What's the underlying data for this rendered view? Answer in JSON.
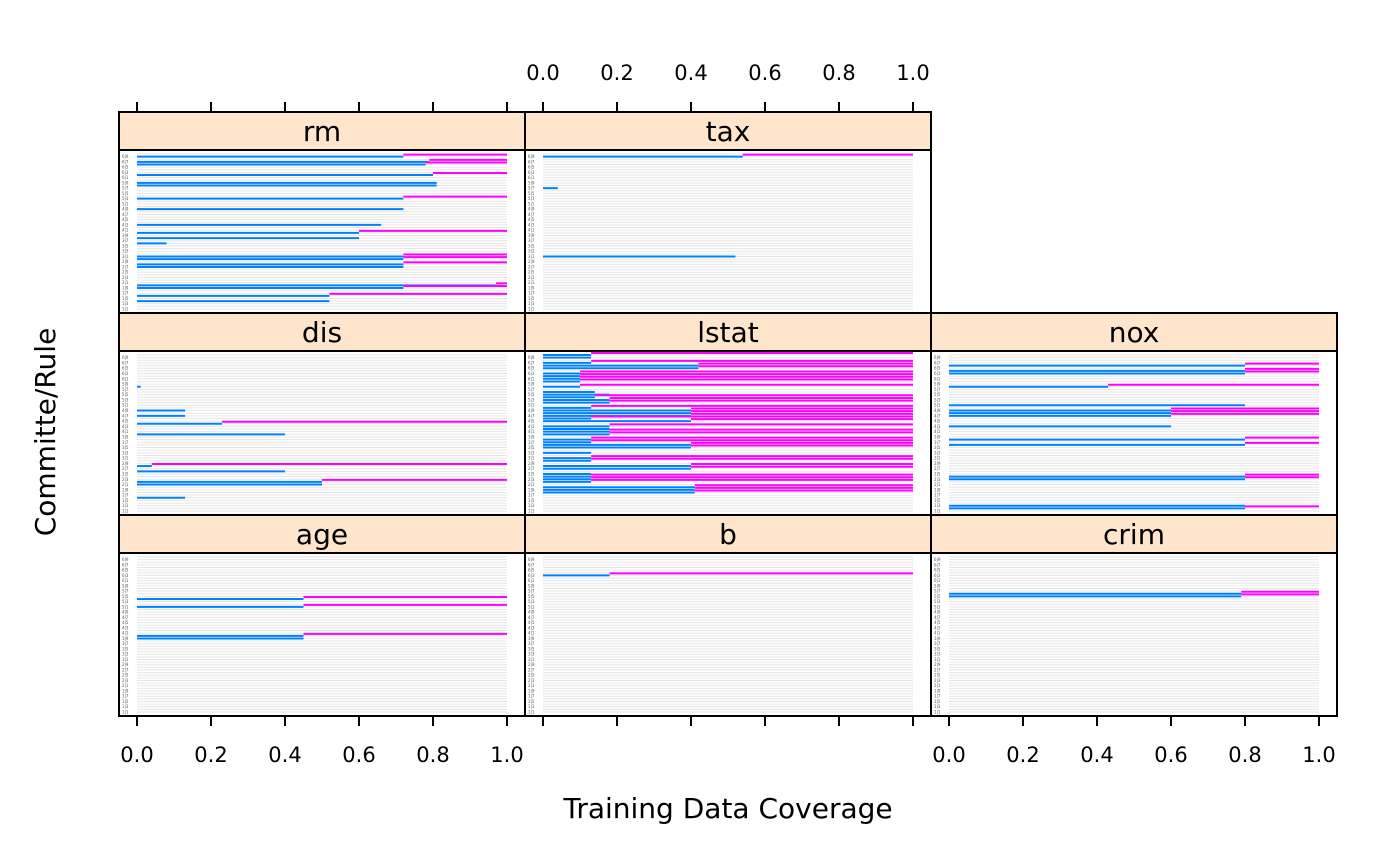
{
  "chart_data": {
    "type": "bar",
    "xlabel": "Training Data Coverage",
    "ylabel": "Committe/Rule",
    "xlim": [
      0,
      1
    ],
    "x_ticks": [
      "0.0",
      "0.2",
      "0.4",
      "0.6",
      "0.8",
      "1.0"
    ],
    "grid": true,
    "colors": {
      "lower": "#0080FF",
      "upper": "#FF00FF",
      "strip": "#FFE5CC",
      "grid": "#E6E6E6"
    },
    "rules_per_panel": 60,
    "panels": [
      {
        "name": "rm",
        "segments": [
          {
            "row": 58,
            "split": 0.72
          },
          {
            "row": 56,
            "split": 0.79
          },
          {
            "row": 55,
            "split": 0.78
          },
          {
            "row": 51,
            "split": 0.8,
            "lower_only": false,
            "upper_start": 0.8
          },
          {
            "row": 48,
            "split": 0.81,
            "lower_only": true
          },
          {
            "row": 47,
            "split": 0.81,
            "lower_only": true
          },
          {
            "row": 42,
            "split": 0.72
          },
          {
            "row": 38,
            "split": 0.72,
            "lower_only": true
          },
          {
            "row": 32,
            "split": 0.66,
            "lower_only": true
          },
          {
            "row": 29,
            "split": 0.6
          },
          {
            "row": 27,
            "split": 0.6,
            "lower_only": true
          },
          {
            "row": 25,
            "split": 0.08,
            "lower_only": true
          },
          {
            "row": 20,
            "split": 0.72
          },
          {
            "row": 19,
            "split": 0.72
          },
          {
            "row": 17,
            "split": 0.72
          },
          {
            "row": 16,
            "split": 0.72,
            "lower_only": true
          },
          {
            "row": 9,
            "split": 0.97
          },
          {
            "row": 8,
            "split": 0.72
          },
          {
            "row": 5,
            "split": 0.52
          },
          {
            "row": 3,
            "split": 0.52,
            "lower_only": true
          }
        ]
      },
      {
        "name": "tax",
        "segments": [
          {
            "row": 58,
            "split": 0.54
          },
          {
            "row": 46,
            "split": 0.04,
            "lower_only": true
          },
          {
            "row": 20,
            "split": 0.52,
            "lower_only": true
          }
        ]
      },
      {
        "name": "dis",
        "segments": [
          {
            "row": 47,
            "split": 0.01,
            "lower_only": true
          },
          {
            "row": 38,
            "split": 0.13,
            "lower_only": true
          },
          {
            "row": 36,
            "split": 0.13,
            "lower_only": true
          },
          {
            "row": 33,
            "split": 0.23
          },
          {
            "row": 29,
            "split": 0.4,
            "lower_only": true
          },
          {
            "row": 17,
            "split": 0.04
          },
          {
            "row": 15,
            "split": 0.4,
            "lower_only": true
          },
          {
            "row": 11,
            "split": 0.5
          },
          {
            "row": 10,
            "split": 0.5,
            "lower_only": true
          },
          {
            "row": 5,
            "split": 0.13,
            "lower_only": true
          }
        ]
      },
      {
        "name": "lstat",
        "segments": [
          {
            "row": 59,
            "split": 0.13
          },
          {
            "row": 58,
            "split": 0.13,
            "lower_only": true
          },
          {
            "row": 56,
            "split": 0.13
          },
          {
            "row": 55,
            "split": 0.42
          },
          {
            "row": 54,
            "split": 0.42
          },
          {
            "row": 52,
            "split": 0.1
          },
          {
            "row": 51,
            "split": 0.1
          },
          {
            "row": 50,
            "split": 0.1
          },
          {
            "row": 49,
            "split": 0.1
          },
          {
            "row": 47,
            "split": 0.1
          },
          {
            "row": 45,
            "split": 0.14,
            "lower_only": true
          },
          {
            "row": 44,
            "split": 0.18,
            "lower_only": true
          },
          {
            "row": 43,
            "split": 0.14
          },
          {
            "row": 42,
            "split": 0.18
          },
          {
            "row": 41,
            "split": 0.18
          },
          {
            "row": 39,
            "split": 0.13
          },
          {
            "row": 38,
            "split": 0.4
          },
          {
            "row": 37,
            "split": 0.4
          },
          {
            "row": 36,
            "split": 0.4
          },
          {
            "row": 35,
            "split": 0.13
          },
          {
            "row": 34,
            "split": 0.4
          },
          {
            "row": 32,
            "split": 0.18
          },
          {
            "row": 31,
            "split": 0.18,
            "lower_only": true
          },
          {
            "row": 30,
            "split": 0.18
          },
          {
            "row": 29,
            "split": 0.18
          },
          {
            "row": 27,
            "split": 0.13
          },
          {
            "row": 26,
            "split": 0.13
          },
          {
            "row": 25,
            "split": 0.4
          },
          {
            "row": 24,
            "split": 0.4
          },
          {
            "row": 22,
            "split": 0.13,
            "lower_only": true
          },
          {
            "row": 20,
            "split": 0.13
          },
          {
            "row": 19,
            "split": 0.13
          },
          {
            "row": 17,
            "split": 0.4
          },
          {
            "row": 16,
            "split": 0.4
          },
          {
            "row": 14,
            "split": 0.13,
            "lower_only": true
          },
          {
            "row": 13,
            "split": 0.13
          },
          {
            "row": 12,
            "split": 0.13
          },
          {
            "row": 11,
            "split": 0.13
          },
          {
            "row": 9,
            "split": 0.41
          },
          {
            "row": 8,
            "split": 0.41
          },
          {
            "row": 7,
            "split": 0.41
          }
        ]
      },
      {
        "name": "nox",
        "segments": [
          {
            "row": 55,
            "split": 0.8
          },
          {
            "row": 53,
            "split": 0.8
          },
          {
            "row": 52,
            "split": 0.8,
            "lower_only": false
          },
          {
            "row": 47,
            "split": 0.43
          },
          {
            "row": 40,
            "split": 0.8,
            "lower_only": true
          },
          {
            "row": 38,
            "split": 0.6
          },
          {
            "row": 37,
            "split": 0.6
          },
          {
            "row": 36,
            "split": 0.6
          },
          {
            "row": 32,
            "split": 0.6,
            "lower_only": true
          },
          {
            "row": 27,
            "split": 0.8
          },
          {
            "row": 25,
            "split": 0.8
          },
          {
            "row": 13,
            "split": 0.8
          },
          {
            "row": 12,
            "split": 0.8
          },
          {
            "row": 2,
            "split": 0.8,
            "lower_only": true
          },
          {
            "row": 1,
            "split": 0.8
          }
        ]
      },
      {
        "name": "age",
        "segments": [
          {
            "row": 43,
            "split": 0.45
          },
          {
            "row": 40,
            "split": 0.45
          },
          {
            "row": 29,
            "split": 0.45
          },
          {
            "row": 28,
            "split": 0.45,
            "lower_only": true
          }
        ]
      },
      {
        "name": "b",
        "segments": [
          {
            "row": 52,
            "split": 0.18
          }
        ]
      },
      {
        "name": "crim",
        "segments": [
          {
            "row": 45,
            "split": 0.79
          },
          {
            "row": 44,
            "split": 0.79
          }
        ]
      }
    ]
  }
}
